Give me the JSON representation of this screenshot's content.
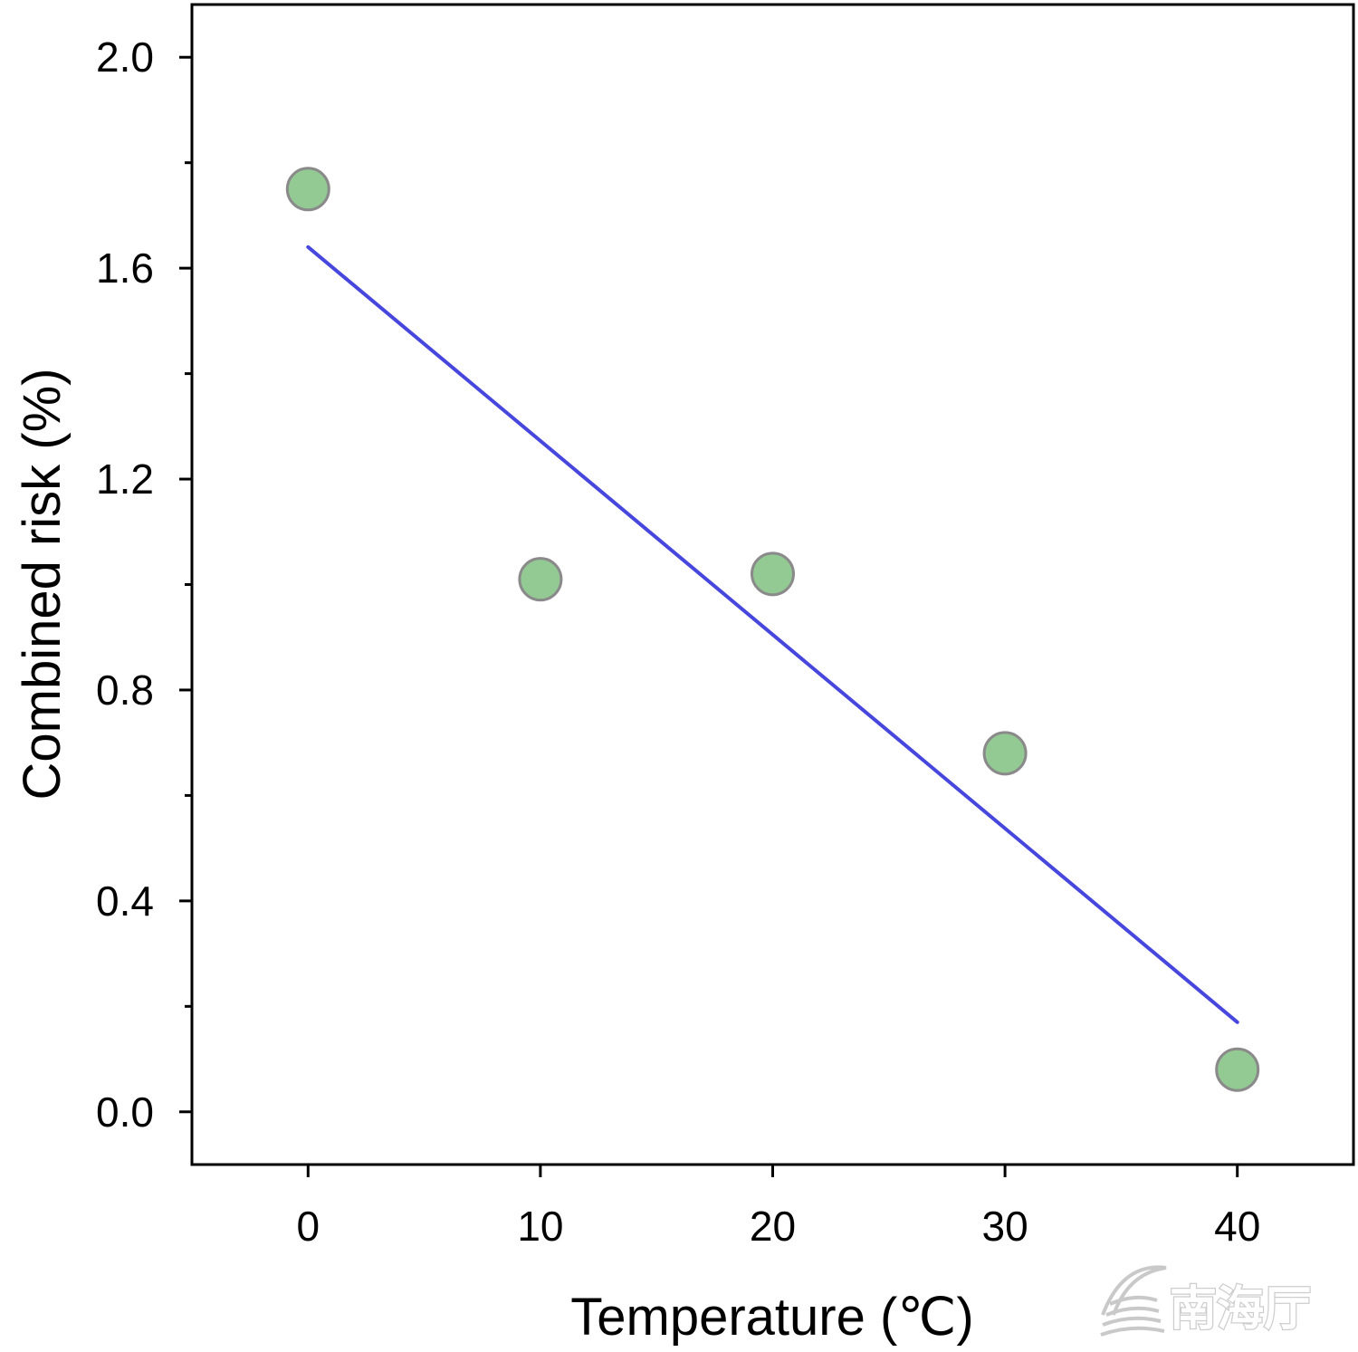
{
  "chart_data": {
    "type": "scatter",
    "title": "",
    "xlabel": "Temperature (℃)",
    "ylabel": "Combined risk (%)",
    "xlim": [
      -5,
      45
    ],
    "ylim": [
      -0.1,
      2.1
    ],
    "x_ticks": [
      0,
      10,
      20,
      30,
      40
    ],
    "x_tick_labels": [
      "0",
      "10",
      "20",
      "30",
      "40"
    ],
    "x_minor_ticks": [],
    "y_ticks": [
      0.0,
      0.4,
      0.8,
      1.2,
      1.6,
      2.0
    ],
    "y_tick_labels": [
      "0.0",
      "0.4",
      "0.8",
      "1.2",
      "1.6",
      "2.0"
    ],
    "y_minor_ticks": [
      0.2,
      0.6,
      1.0,
      1.4,
      1.8
    ],
    "grid": false,
    "legend": "none",
    "series": [
      {
        "type": "scatter",
        "x": [
          0,
          10,
          20,
          30,
          40
        ],
        "y": [
          1.75,
          1.01,
          1.02,
          0.68,
          0.08
        ],
        "color": "#93c993",
        "edge_color": "#8a8a8a"
      },
      {
        "type": "line",
        "x": [
          0,
          40
        ],
        "y": [
          1.64,
          0.17
        ],
        "color": "#4747de"
      }
    ],
    "watermark": "南海厅"
  }
}
